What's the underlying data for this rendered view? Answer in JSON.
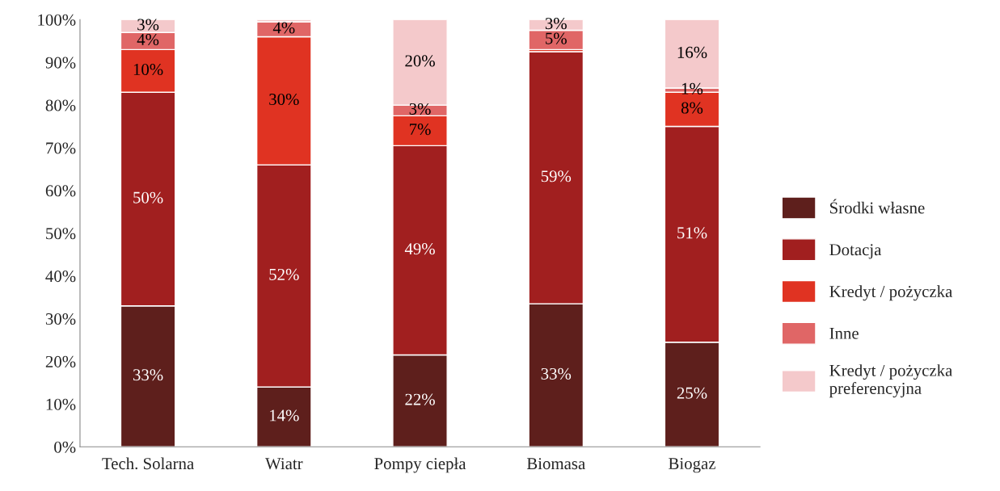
{
  "chart_data": {
    "type": "bar",
    "stacked": true,
    "categories": [
      "Tech. Solarna",
      "Wiatr",
      "Pompy ciepła",
      "Biomasa",
      "Biogaz"
    ],
    "series": [
      {
        "name": "Środki własne",
        "color": "#5e1f1c",
        "values": [
          33,
          14,
          21.5,
          33.5,
          24.5
        ],
        "value_labels": [
          "33%",
          "14%",
          "22%",
          "33%",
          "25%"
        ]
      },
      {
        "name": "Dotacja",
        "color": "#a11f1f",
        "values": [
          50,
          52,
          49,
          59,
          50.5
        ],
        "value_labels": [
          "50%",
          "52%",
          "49%",
          "59%",
          "51%"
        ]
      },
      {
        "name": "Kredyt / pożyczka",
        "color": "#e03322",
        "values": [
          10,
          30,
          7,
          0.5,
          8
        ],
        "value_labels": [
          "10%",
          "30%",
          "7%",
          null,
          "8%"
        ]
      },
      {
        "name": "Inne",
        "color": "#e06666",
        "values": [
          4,
          3.5,
          2.5,
          4.5,
          1
        ],
        "value_labels": [
          "4%",
          "4%",
          "3%",
          "5%",
          "1%"
        ]
      },
      {
        "name": "Kredyt / pożyczka preferencyjna",
        "color": "#f4c9cb",
        "values": [
          3,
          0.5,
          20,
          2.5,
          16
        ],
        "value_labels": [
          "3%",
          null,
          "20%",
          "3%",
          "16%"
        ]
      }
    ],
    "ylim": [
      0,
      100
    ],
    "yticks": [
      {
        "value": 0,
        "label": "0%"
      },
      {
        "value": 10,
        "label": "10%"
      },
      {
        "value": 20,
        "label": "20%"
      },
      {
        "value": 30,
        "label": "30%"
      },
      {
        "value": 40,
        "label": "40%"
      },
      {
        "value": 50,
        "label": "50%"
      },
      {
        "value": 60,
        "label": "60%"
      },
      {
        "value": 70,
        "label": "70%"
      },
      {
        "value": 80,
        "label": "80%"
      },
      {
        "value": 90,
        "label": "90%"
      },
      {
        "value": 100,
        "label": "100%"
      }
    ],
    "grid": false,
    "legend": "right"
  }
}
